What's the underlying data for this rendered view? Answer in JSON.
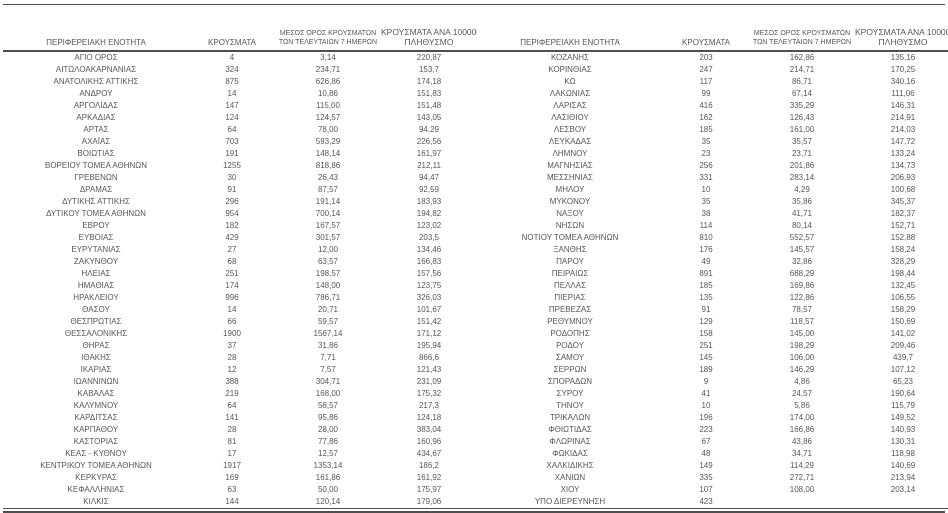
{
  "page": {
    "background": "#ffffff",
    "text_color": "#575757",
    "rule_color": "#4f4f4f"
  },
  "table": {
    "headers": {
      "region": "ΠΕΡΙΦΕΡΕΙΑΚΗ ΕΝΟΤΗΤΑ",
      "cases": "ΚΡΟΥΣΜΑΤΑ",
      "avg7_line1": "ΜΕΣΟΣ ΟΡΟΣ ΚΡΟΥΣΜΑΤΩΝ",
      "avg7_line2": "ΤΩΝ ΤΕΛΕΥΤΑΙΩΝ 7 ΗΜΕΡΩΝ",
      "per100k_line1": "ΚΡΟΥΣΜΑΤΑ ΑΝΑ 100000",
      "per100k_line2": "ΠΛΗΘΥΣΜΟ"
    },
    "left_rows": [
      [
        "ΑΓΙΟ ΟΡΟΣ",
        "4",
        "3,14",
        "220,87"
      ],
      [
        "ΑΙΤΩΛΟΑΚΑΡΝΑΝΙΑΣ",
        "324",
        "234,71",
        "153,7"
      ],
      [
        "ΑΝΑΤΟΛΙΚΗΣ ΑΤΤΙΚΗΣ",
        "875",
        "626,86",
        "174,18"
      ],
      [
        "ΑΝΔΡΟΥ",
        "14",
        "10,86",
        "151,83"
      ],
      [
        "ΑΡΓΟΛΙΔΑΣ",
        "147",
        "115,00",
        "151,48"
      ],
      [
        "ΑΡΚΑΔΙΑΣ",
        "124",
        "124,57",
        "143,05"
      ],
      [
        "ΑΡΤΑΣ",
        "64",
        "78,00",
        "94,29"
      ],
      [
        "ΑΧΑΪΑΣ",
        "703",
        "593,29",
        "226,56"
      ],
      [
        "ΒΟΙΩΤΙΑΣ",
        "191",
        "148,14",
        "161,97"
      ],
      [
        "ΒΟΡΕΙΟΥ ΤΟΜΕΑ ΑΘΗΝΩΝ",
        "1255",
        "818,86",
        "212,11"
      ],
      [
        "ΓΡΕΒΕΝΩΝ",
        "30",
        "26,43",
        "94,47"
      ],
      [
        "ΔΡΑΜΑΣ",
        "91",
        "87,57",
        "92,59"
      ],
      [
        "ΔΥΤΙΚΗΣ ΑΤΤΙΚΗΣ",
        "296",
        "191,14",
        "183,93"
      ],
      [
        "ΔΥΤΙΚΟΥ ΤΟΜΕΑ ΑΘΗΝΩΝ",
        "954",
        "700,14",
        "194,82"
      ],
      [
        "ΕΒΡΟΥ",
        "182",
        "167,57",
        "123,02"
      ],
      [
        "ΕΥΒΟΙΑΣ",
        "429",
        "301,57",
        "203,5"
      ],
      [
        "ΕΥΡΥΤΑΝΙΑΣ",
        "27",
        "12,00",
        "134,46"
      ],
      [
        "ΖΑΚΥΝΘΟΥ",
        "68",
        "63,57",
        "166,83"
      ],
      [
        "ΗΛΕΙΑΣ",
        "251",
        "198,57",
        "157,56"
      ],
      [
        "ΗΜΑΘΙΑΣ",
        "174",
        "148,00",
        "123,75"
      ],
      [
        "ΗΡΑΚΛΕΙΟΥ",
        "996",
        "786,71",
        "326,03"
      ],
      [
        "ΘΑΣΟΥ",
        "14",
        "20,71",
        "101,67"
      ],
      [
        "ΘΕΣΠΡΩΤΙΑΣ",
        "66",
        "59,57",
        "151,42"
      ],
      [
        "ΘΕΣΣΑΛΟΝΙΚΗΣ",
        "1900",
        "1567,14",
        "171,12"
      ],
      [
        "ΘΗΡΑΣ",
        "37",
        "31,86",
        "195,94"
      ],
      [
        "ΙΘΑΚΗΣ",
        "28",
        "7,71",
        "866,6"
      ],
      [
        "ΙΚΑΡΙΑΣ",
        "12",
        "7,57",
        "121,43"
      ],
      [
        "ΙΩΑΝΝΙΝΩΝ",
        "388",
        "304,71",
        "231,09"
      ],
      [
        "ΚΑΒΑΛΑΣ",
        "219",
        "168,00",
        "175,32"
      ],
      [
        "ΚΑΛΥΜΝΟΥ",
        "64",
        "58,57",
        "217,3"
      ],
      [
        "ΚΑΡΔΙΤΣΑΣ",
        "141",
        "95,86",
        "124,18"
      ],
      [
        "ΚΑΡΠΑΘΟΥ",
        "28",
        "28,00",
        "383,04"
      ],
      [
        "ΚΑΣΤΟΡΙΑΣ",
        "81",
        "77,86",
        "160,96"
      ],
      [
        "ΚΕΑΣ - ΚΥΘΝΟΥ",
        "17",
        "12,57",
        "434,67"
      ],
      [
        "ΚΕΝΤΡΙΚΟΥ ΤΟΜΕΑ ΑΘΗΝΩΝ",
        "1917",
        "1353,14",
        "186,2"
      ],
      [
        "ΚΕΡΚΥΡΑΣ",
        "169",
        "161,86",
        "161,92"
      ],
      [
        "ΚΕΦΑΛΛΗΝΙΑΣ",
        "63",
        "50,00",
        "175,97"
      ],
      [
        "ΚΙΛΚΙΣ",
        "144",
        "120,14",
        "179,06"
      ]
    ],
    "right_rows": [
      [
        "ΚΟΖΑΝΗΣ",
        "203",
        "162,86",
        "135,16"
      ],
      [
        "ΚΟΡΙΝΘΙΑΣ",
        "247",
        "214,71",
        "170,25"
      ],
      [
        "ΚΩ",
        "117",
        "86,71",
        "340,16"
      ],
      [
        "ΛΑΚΩΝΙΑΣ",
        "99",
        "67,14",
        "111,06"
      ],
      [
        "ΛΑΡΙΣΑΣ",
        "416",
        "335,29",
        "146,31"
      ],
      [
        "ΛΑΣΙΘΙΟΥ",
        "162",
        "126,43",
        "214,91"
      ],
      [
        "ΛΕΣΒΟΥ",
        "185",
        "161,00",
        "214,03"
      ],
      [
        "ΛΕΥΚΑΔΑΣ",
        "35",
        "35,57",
        "147,72"
      ],
      [
        "ΛΗΜΝΟΥ",
        "23",
        "23,71",
        "133,24"
      ],
      [
        "ΜΑΓΝΗΣΙΑΣ",
        "256",
        "201,86",
        "134,73"
      ],
      [
        "ΜΕΣΣΗΝΙΑΣ",
        "331",
        "283,14",
        "206,93"
      ],
      [
        "ΜΗΛΟΥ",
        "10",
        "4,29",
        "100,68"
      ],
      [
        "ΜΥΚΟΝΟΥ",
        "35",
        "35,86",
        "345,37"
      ],
      [
        "ΝΑΞΟΥ",
        "38",
        "41,71",
        "182,37"
      ],
      [
        "ΝΗΣΩΝ",
        "114",
        "80,14",
        "152,71"
      ],
      [
        "ΝΟΤΙΟΥ ΤΟΜΕΑ ΑΘΗΝΩΝ",
        "810",
        "552,57",
        "152,88"
      ],
      [
        "ΞΑΝΘΗΣ",
        "176",
        "145,57",
        "158,24"
      ],
      [
        "ΠΑΡΟΥ",
        "49",
        "32,86",
        "328,29"
      ],
      [
        "ΠΕΙΡΑΙΩΣ",
        "891",
        "688,29",
        "198,44"
      ],
      [
        "ΠΕΛΛΑΣ",
        "185",
        "169,86",
        "132,45"
      ],
      [
        "ΠΙΕΡΙΑΣ",
        "135",
        "122,86",
        "106,55"
      ],
      [
        "ΠΡΕΒΕΖΑΣ",
        "91",
        "78,57",
        "158,29"
      ],
      [
        "ΡΕΘΥΜΝΟΥ",
        "129",
        "118,57",
        "150,69"
      ],
      [
        "ΡΟΔΟΠΗΣ",
        "158",
        "145,00",
        "141,02"
      ],
      [
        "ΡΟΔΟΥ",
        "251",
        "198,29",
        "209,46"
      ],
      [
        "ΣΑΜΟΥ",
        "145",
        "106,00",
        "439,7"
      ],
      [
        "ΣΕΡΡΩΝ",
        "189",
        "146,29",
        "107,12"
      ],
      [
        "ΣΠΟΡΑΔΩΝ",
        "9",
        "4,86",
        "65,23"
      ],
      [
        "ΣΥΡΟΥ",
        "41",
        "24,57",
        "190,64"
      ],
      [
        "ΤΗΝΟΥ",
        "10",
        "5,86",
        "115,79"
      ],
      [
        "ΤΡΙΚΑΛΩΝ",
        "196",
        "174,00",
        "149,52"
      ],
      [
        "ΦΘΙΩΤΙΔΑΣ",
        "223",
        "166,86",
        "140,93"
      ],
      [
        "ΦΛΩΡΙΝΑΣ",
        "67",
        "43,86",
        "130,31"
      ],
      [
        "ΦΩΚΙΔΑΣ",
        "48",
        "34,71",
        "118,98"
      ],
      [
        "ΧΑΛΚΙΔΙΚΗΣ",
        "149",
        "114,29",
        "140,69"
      ],
      [
        "ΧΑΝΙΩΝ",
        "335",
        "272,71",
        "213,94"
      ],
      [
        "ΧΙΟΥ",
        "107",
        "108,00",
        "203,14"
      ],
      [
        "ΥΠΟ ΔΙΕΡΕΥΝΗΣΗ",
        "423",
        "",
        ""
      ]
    ]
  }
}
